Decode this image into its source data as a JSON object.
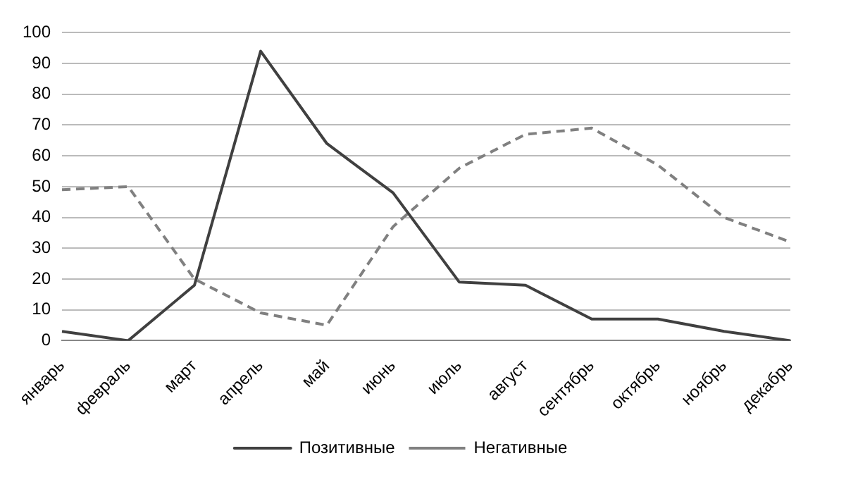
{
  "chart_data": {
    "type": "line",
    "categories": [
      "январь",
      "февраль",
      "март",
      "апрель",
      "май",
      "июнь",
      "июль",
      "август",
      "сентябрь",
      "октябрь",
      "ноябрь",
      "декабрь"
    ],
    "series": [
      {
        "name": "Позитивные",
        "color": "#404040",
        "line_style": "solid",
        "values": [
          3,
          0,
          18,
          94,
          64,
          48,
          19,
          18,
          7,
          7,
          3,
          0
        ]
      },
      {
        "name": "Негативные",
        "color": "#808080",
        "line_style": "dashed",
        "values": [
          49,
          50,
          20,
          9,
          5,
          37,
          56,
          67,
          69,
          57,
          40,
          32
        ]
      }
    ],
    "ylim": [
      0,
      100
    ],
    "yticks": [
      0,
      10,
      20,
      30,
      40,
      50,
      60,
      70,
      80,
      90,
      100
    ],
    "grid": "y",
    "legend": "bottom",
    "marker": "none"
  }
}
